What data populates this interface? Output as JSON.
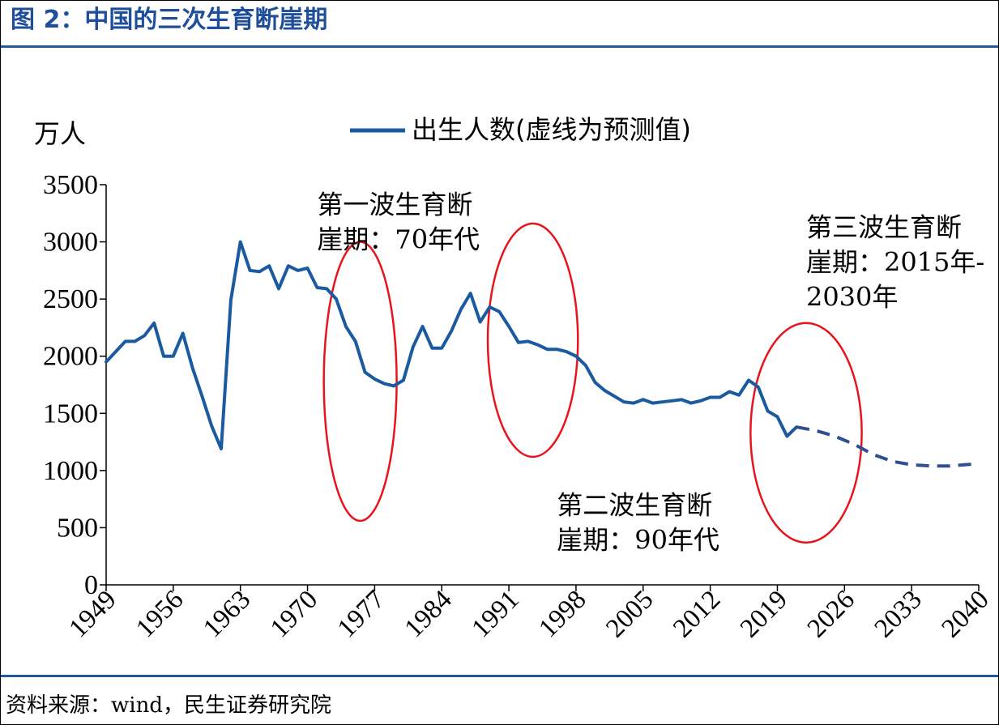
{
  "colors": {
    "title": "#1f4e9a",
    "rule": "#1f5a96",
    "line": "#1a5aa0",
    "forecast": "#2f4f91",
    "highlight": "#e8141c",
    "axis": "#000000"
  },
  "header": {
    "title": "图 2：中国的三次生育断崖期"
  },
  "footer": {
    "source": "资料来源：wind，民生证券研究院"
  },
  "chart_data": {
    "type": "line",
    "ylabel": "万人",
    "ylim": [
      0,
      3500
    ],
    "yticks": [
      "0",
      "500",
      "1000",
      "1500",
      "2000",
      "2500",
      "3000",
      "3500"
    ],
    "xlim": [
      1949,
      2040
    ],
    "xticks": [
      "1949",
      "1956",
      "1963",
      "1970",
      "1977",
      "1984",
      "1991",
      "1998",
      "2005",
      "2012",
      "2019",
      "2026",
      "2033",
      "2040"
    ],
    "legend": {
      "label": "出生人数(虚线为预测值)",
      "position": "top"
    },
    "grid": false,
    "series": [
      {
        "name": "出生人数(虚线为预测值)",
        "style": "solid",
        "x": [
          1949,
          1950,
          1951,
          1952,
          1953,
          1954,
          1955,
          1956,
          1957,
          1958,
          1959,
          1960,
          1961,
          1962,
          1963,
          1964,
          1965,
          1966,
          1967,
          1968,
          1969,
          1970,
          1971,
          1972,
          1973,
          1974,
          1975,
          1976,
          1977,
          1978,
          1979,
          1980,
          1981,
          1982,
          1983,
          1984,
          1985,
          1986,
          1987,
          1988,
          1989,
          1990,
          1991,
          1992,
          1993,
          1994,
          1995,
          1996,
          1997,
          1998,
          1999,
          2000,
          2001,
          2002,
          2003,
          2004,
          2005,
          2006,
          2007,
          2008,
          2009,
          2010,
          2011,
          2012,
          2013,
          2014,
          2015,
          2016,
          2017,
          2018,
          2019,
          2020,
          2021
        ],
        "y": [
          1950,
          2040,
          2130,
          2130,
          2180,
          2290,
          2000,
          2000,
          2200,
          1900,
          1650,
          1390,
          1190,
          2490,
          3000,
          2750,
          2740,
          2790,
          2590,
          2790,
          2750,
          2770,
          2600,
          2590,
          2500,
          2260,
          2130,
          1860,
          1800,
          1760,
          1740,
          1790,
          2080,
          2260,
          2070,
          2070,
          2220,
          2410,
          2550,
          2300,
          2430,
          2390,
          2260,
          2120,
          2130,
          2100,
          2060,
          2060,
          2040,
          2000,
          1920,
          1770,
          1700,
          1650,
          1600,
          1590,
          1620,
          1590,
          1600,
          1610,
          1620,
          1590,
          1610,
          1640,
          1640,
          1690,
          1660,
          1790,
          1730,
          1520,
          1470,
          1300,
          1380
        ]
      },
      {
        "name": "",
        "style": "dashed",
        "x": [
          2021,
          2023,
          2025,
          2027,
          2029,
          2031,
          2033,
          2035,
          2037,
          2040
        ],
        "y": [
          1380,
          1350,
          1300,
          1230,
          1140,
          1080,
          1050,
          1040,
          1040,
          1060
        ]
      }
    ],
    "annotations": [
      {
        "lines": [
          "第一波生育断",
          "崖期：70年代"
        ],
        "x": 1971,
        "y": 3250
      },
      {
        "lines": [
          "第二波生育断",
          "崖期：90年代"
        ],
        "x": 1996,
        "y": 620
      },
      {
        "lines": [
          "第三波生育断",
          "崖期：2015年-",
          "2030年"
        ],
        "x": 2022,
        "y": 3050
      }
    ],
    "highlights": [
      {
        "cx": 1975.5,
        "cy": 1780,
        "rx": 3.8,
        "ry": 1220
      },
      {
        "cx": 1993.5,
        "cy": 2140,
        "rx": 4.7,
        "ry": 1020
      },
      {
        "cx": 2022,
        "cy": 1330,
        "rx": 5.8,
        "ry": 960
      }
    ]
  }
}
